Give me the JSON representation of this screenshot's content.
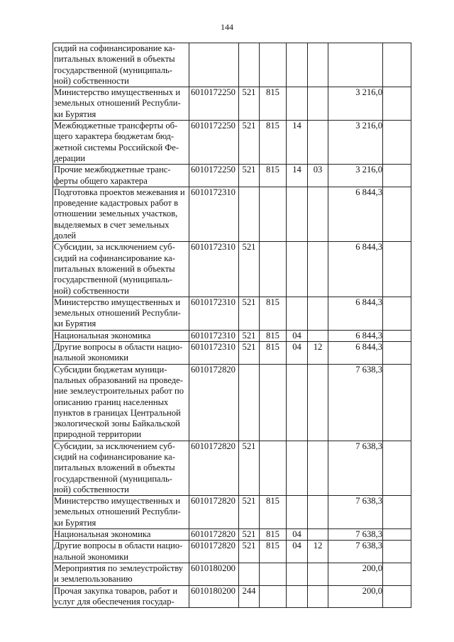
{
  "page_number": "144",
  "rows": [
    {
      "name": "сидий на софинансирование ка-питальных вложений в объекты государственной (муниципаль-ной) собственности",
      "code": "",
      "vr": "",
      "grbs": "",
      "rz": "",
      "pr": "",
      "sum": "",
      "extra": ""
    },
    {
      "name": "Министерство имущественных и земельных отношений Республи-ки Бурятия",
      "code": "6010172250",
      "vr": "521",
      "grbs": "815",
      "rz": "",
      "pr": "",
      "sum": "3 216,0",
      "extra": ""
    },
    {
      "name": "Межбюджетные трансферты об-щего характера бюджетам бюд-жетной системы Российской Фе-дерации",
      "code": "6010172250",
      "vr": "521",
      "grbs": "815",
      "rz": "14",
      "pr": "",
      "sum": "3 216,0",
      "extra": ""
    },
    {
      "name": "Прочие межбюджетные транс-ферты общего характера",
      "code": "6010172250",
      "vr": "521",
      "grbs": "815",
      "rz": "14",
      "pr": "03",
      "sum": "3 216,0",
      "extra": ""
    },
    {
      "name": "Подготовка проектов межевания и проведение кадастровых работ в отношении земельных участков, выделяемых в счет земельных долей",
      "code": "6010172310",
      "vr": "",
      "grbs": "",
      "rz": "",
      "pr": "",
      "sum": "6 844,3",
      "extra": ""
    },
    {
      "name": "Субсидии, за исключением суб-сидий на софинансирование ка-питальных вложений в объекты государственной (муниципаль-ной) собственности",
      "code": "6010172310",
      "vr": "521",
      "grbs": "",
      "rz": "",
      "pr": "",
      "sum": "6 844,3",
      "extra": ""
    },
    {
      "name": "Министерство имущественных и земельных отношений Республи-ки Бурятия",
      "code": "6010172310",
      "vr": "521",
      "grbs": "815",
      "rz": "",
      "pr": "",
      "sum": "6 844,3",
      "extra": ""
    },
    {
      "name": "Национальная экономика",
      "code": "6010172310",
      "vr": "521",
      "grbs": "815",
      "rz": "04",
      "pr": "",
      "sum": "6 844,3",
      "extra": ""
    },
    {
      "name": "Другие вопросы в области нацио-нальной экономики",
      "code": "6010172310",
      "vr": "521",
      "grbs": "815",
      "rz": "04",
      "pr": "12",
      "sum": "6 844,3",
      "extra": ""
    },
    {
      "name": "Субсидии бюджетам муници-пальных образований на проведе-ние землеустроительных работ по описанию границ населенных пунктов в границах Центральной экологической зоны Байкальской природной территории",
      "code": "6010172820",
      "vr": "",
      "grbs": "",
      "rz": "",
      "pr": "",
      "sum": "7 638,3",
      "extra": ""
    },
    {
      "name": "Субсидии, за исключением суб-сидий на софинансирование ка-питальных вложений в объекты государственной (муниципаль-ной) собственности",
      "code": "6010172820",
      "vr": "521",
      "grbs": "",
      "rz": "",
      "pr": "",
      "sum": "7 638,3",
      "extra": ""
    },
    {
      "name": "Министерство имущественных и земельных отношений Республи-ки Бурятия",
      "code": "6010172820",
      "vr": "521",
      "grbs": "815",
      "rz": "",
      "pr": "",
      "sum": "7 638,3",
      "extra": ""
    },
    {
      "name": "Национальная экономика",
      "code": "6010172820",
      "vr": "521",
      "grbs": "815",
      "rz": "04",
      "pr": "",
      "sum": "7 638,3",
      "extra": ""
    },
    {
      "name": "Другие вопросы в области нацио-нальной экономики",
      "code": "6010172820",
      "vr": "521",
      "grbs": "815",
      "rz": "04",
      "pr": "12",
      "sum": "7 638,3",
      "extra": ""
    },
    {
      "name": "Мероприятия по землеустройству и землепользованию",
      "code": "6010180200",
      "vr": "",
      "grbs": "",
      "rz": "",
      "pr": "",
      "sum": "200,0",
      "extra": ""
    },
    {
      "name": "Прочая закупка товаров, работ и услуг для обеспечения государ-",
      "code": "6010180200",
      "vr": "244",
      "grbs": "",
      "rz": "",
      "pr": "",
      "sum": "200,0",
      "extra": ""
    }
  ]
}
